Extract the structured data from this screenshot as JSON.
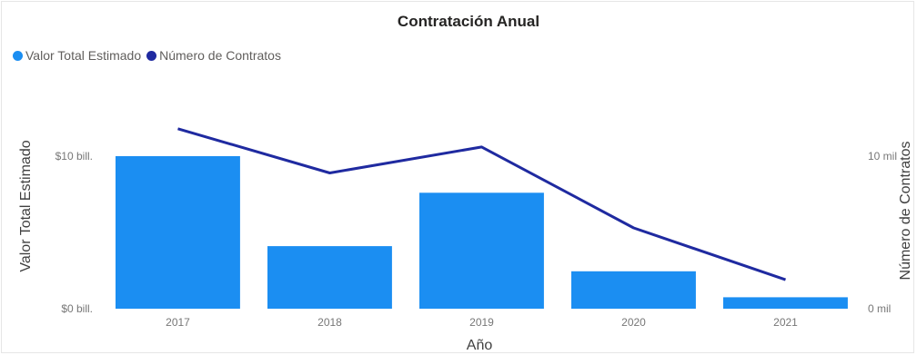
{
  "chart_data": {
    "type": "bar",
    "title": "Contratación Anual",
    "categories": [
      "2017",
      "2018",
      "2019",
      "2020",
      "2021"
    ],
    "series": [
      {
        "name": "Valor Total Estimado",
        "type": "bar",
        "axis": "left",
        "color": "#1b8ef2",
        "values": [
          10.0,
          4.1,
          7.6,
          2.45,
          0.75
        ]
      },
      {
        "name": "Número de Contratos",
        "type": "line",
        "axis": "right",
        "color": "#1f2aa0",
        "values": [
          11800,
          8900,
          10600,
          5300,
          1900
        ]
      }
    ],
    "xlabel": "Año",
    "ylabel": "Valor Total Estimado",
    "ylabel_right": "Número de Contratos",
    "ylim": [
      0,
      10
    ],
    "ylim_right": [
      0,
      10000
    ],
    "yticks": [
      {
        "value": 0,
        "label": "$0 bill."
      },
      {
        "value": 10,
        "label": "$10 bill."
      }
    ],
    "yticks_right": [
      {
        "value": 0,
        "label": "0 mil"
      },
      {
        "value": 10000,
        "label": "10 mil"
      }
    ],
    "grid": false,
    "legend_position": "top-left"
  }
}
